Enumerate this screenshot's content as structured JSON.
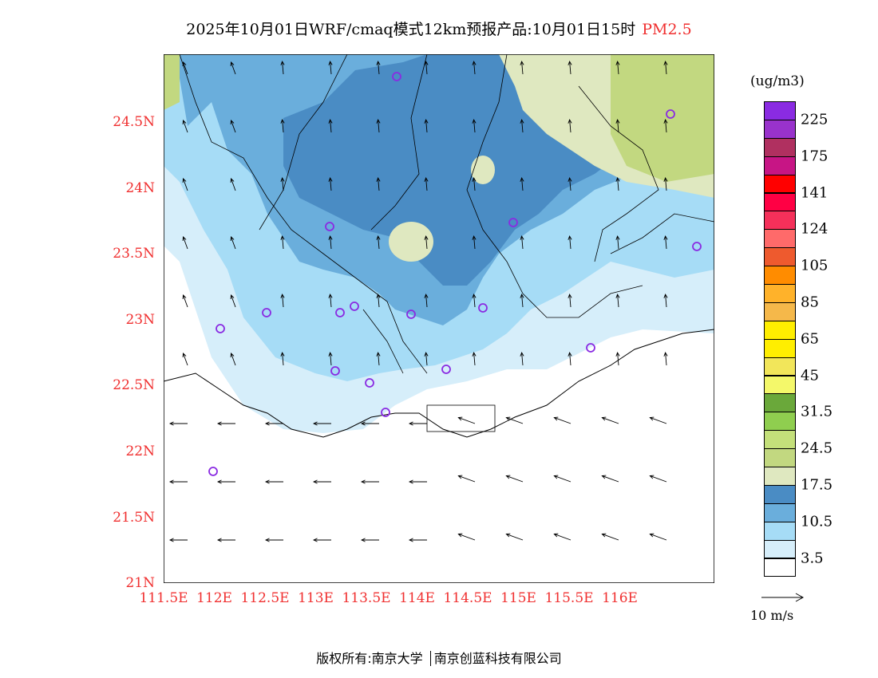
{
  "title": {
    "main": "2025年10月01日WRF/cmaq模式12km预报产品:10月01日15时",
    "pollutant": "PM2.5"
  },
  "axes": {
    "lat_labels": [
      "24.5N",
      "24N",
      "23.5N",
      "23N",
      "22.5N",
      "22N",
      "21.5N",
      "21N"
    ],
    "lon_labels": [
      "111.5E",
      "112E",
      "112.5E",
      "113E",
      "113.5E",
      "114E",
      "114.5E",
      "115E",
      "115.5E",
      "116E"
    ]
  },
  "legend": {
    "unit": "(ug/m3)",
    "colors": [
      "#8a2be2",
      "#9932cc",
      "#b03060",
      "#c71585",
      "#ff0000",
      "#ff0044",
      "#f5305a",
      "#ff6a6a",
      "#ee5a2e",
      "#ff8c00",
      "#ffb22a",
      "#f5b84a",
      "#ffee00",
      "#ffee00",
      "#f2e65a",
      "#f4f86a",
      "#6aa83a",
      "#8fce4f",
      "#c4e07a",
      "#c2d880",
      "#dfe8c0",
      "#4a8cc4",
      "#6aaedc",
      "#a6dcf6",
      "#d6eefa",
      "#ffffff"
    ],
    "labels": [
      "225",
      "175",
      "141",
      "124",
      "105",
      "85",
      "65",
      "45",
      "31.5",
      "24.5",
      "17.5",
      "10.5",
      "3.5"
    ]
  },
  "wind_reference": "10 m/s",
  "footer": {
    "left": "版权所有:南京大学",
    "right": "南京创蓝科技有限公司"
  }
}
